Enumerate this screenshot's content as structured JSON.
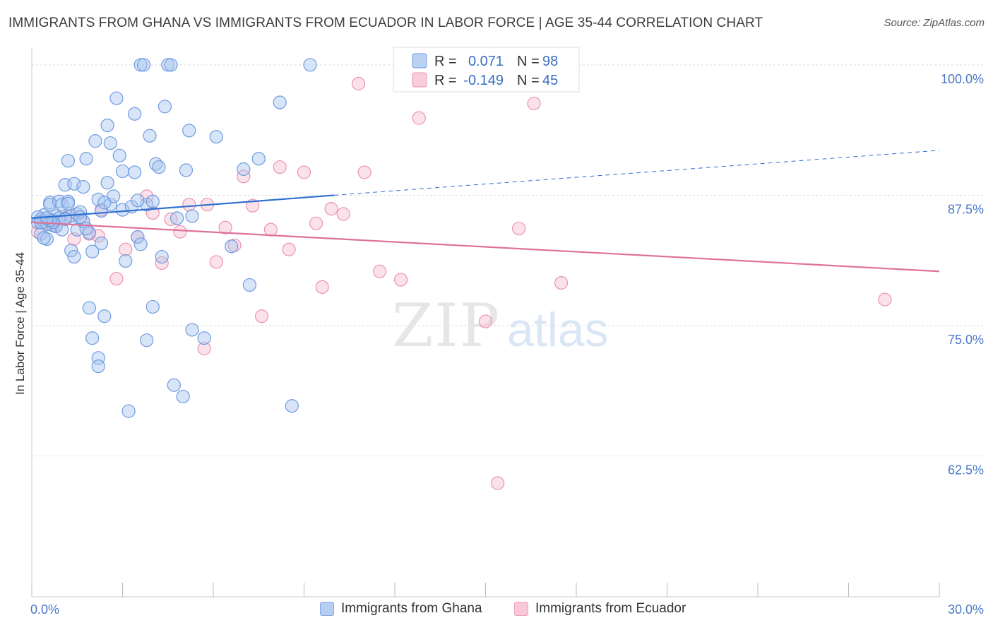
{
  "header": {
    "title": "IMMIGRANTS FROM GHANA VS IMMIGRANTS FROM ECUADOR IN LABOR FORCE | AGE 35-44 CORRELATION CHART",
    "source": "Source: ZipAtlas.com"
  },
  "watermark": {
    "zip": "ZIP",
    "atlas": "atlas"
  },
  "colors": {
    "ghana_fill": "#a9c6f0",
    "ghana_stroke": "#6f9be0",
    "ghana_line": "#2f6fd0",
    "ecuador_fill": "#f7bfd0",
    "ecuador_stroke": "#eb93b0",
    "ecuador_line": "#e0709a",
    "tick_label": "#4a78c8",
    "grid": "#dddddd"
  },
  "legend": {
    "rows": [
      {
        "series": "ghana",
        "r_label": "R =",
        "r_value": "0.071",
        "n_label": "N =",
        "n_value": "98"
      },
      {
        "series": "ecuador",
        "r_label": "R =",
        "r_value": "-0.149",
        "n_label": "N =",
        "n_value": "45"
      }
    ]
  },
  "chart_data": {
    "type": "scatter",
    "title": "IMMIGRANTS FROM GHANA VS IMMIGRANTS FROM ECUADOR IN LABOR FORCE | AGE 35-44 CORRELATION CHART",
    "xlabel": "",
    "ylabel": "In Labor Force | Age 35-44",
    "xlim": [
      0,
      30
    ],
    "ylim": [
      49,
      100.8
    ],
    "x_tick_labels": [
      {
        "value": 0,
        "label": "0.0%"
      },
      {
        "value": 30,
        "label": "30.0%"
      }
    ],
    "x_minor_ticks": [
      0,
      3,
      6,
      9,
      12,
      15,
      18,
      21,
      24,
      27,
      30
    ],
    "y_ticks": [
      {
        "value": 100,
        "label": "100.0%"
      },
      {
        "value": 87.5,
        "label": "87.5%"
      },
      {
        "value": 75,
        "label": "75.0%"
      },
      {
        "value": 62.5,
        "label": "62.5%"
      }
    ],
    "grid": true,
    "legend_position": "top-center",
    "series": [
      {
        "name": "Immigrants from Ghana",
        "key": "ghana",
        "r": 0.071,
        "n": 98,
        "trend": {
          "x0": 0,
          "y0": 85.3,
          "x1": 10.0,
          "y1": 87.5,
          "dash_to_x": 30,
          "dash_to_y": 91.8
        },
        "points": [
          [
            0.2,
            84.9
          ],
          [
            0.3,
            85.2
          ],
          [
            0.3,
            83.8
          ],
          [
            0.4,
            85.6
          ],
          [
            0.5,
            84.7
          ],
          [
            0.5,
            83.3
          ],
          [
            0.6,
            86.8
          ],
          [
            0.6,
            86.6
          ],
          [
            0.7,
            85.1
          ],
          [
            0.7,
            84.6
          ],
          [
            0.8,
            85.5
          ],
          [
            0.8,
            84.5
          ],
          [
            0.9,
            86.9
          ],
          [
            1.0,
            84.2
          ],
          [
            1.0,
            86.6
          ],
          [
            1.1,
            85.3
          ],
          [
            1.1,
            88.5
          ],
          [
            1.2,
            86.9
          ],
          [
            1.2,
            90.8
          ],
          [
            1.3,
            82.2
          ],
          [
            1.3,
            85.5
          ],
          [
            1.4,
            88.6
          ],
          [
            1.4,
            81.6
          ],
          [
            1.5,
            85.7
          ],
          [
            1.5,
            84.2
          ],
          [
            1.6,
            85.9
          ],
          [
            1.7,
            88.3
          ],
          [
            1.7,
            85.0
          ],
          [
            1.8,
            91.0
          ],
          [
            1.9,
            83.9
          ],
          [
            1.9,
            76.7
          ],
          [
            2.0,
            82.1
          ],
          [
            2.0,
            73.8
          ],
          [
            2.1,
            92.7
          ],
          [
            2.2,
            87.1
          ],
          [
            2.2,
            71.9
          ],
          [
            2.2,
            71.1
          ],
          [
            2.3,
            86.0
          ],
          [
            2.3,
            82.9
          ],
          [
            2.4,
            75.9
          ],
          [
            2.5,
            94.2
          ],
          [
            2.5,
            88.7
          ],
          [
            2.6,
            92.5
          ],
          [
            2.6,
            86.6
          ],
          [
            2.7,
            87.4
          ],
          [
            2.8,
            96.8
          ],
          [
            2.9,
            91.3
          ],
          [
            3.0,
            86.1
          ],
          [
            3.0,
            89.8
          ],
          [
            3.1,
            81.2
          ],
          [
            3.2,
            66.8
          ],
          [
            3.3,
            86.4
          ],
          [
            3.4,
            95.3
          ],
          [
            3.4,
            89.7
          ],
          [
            3.5,
            83.5
          ],
          [
            3.6,
            82.8
          ],
          [
            3.6,
            100.0
          ],
          [
            3.7,
            100.0
          ],
          [
            3.8,
            73.6
          ],
          [
            3.8,
            86.6
          ],
          [
            3.9,
            93.2
          ],
          [
            4.0,
            86.9
          ],
          [
            4.0,
            76.8
          ],
          [
            4.1,
            90.5
          ],
          [
            4.2,
            90.2
          ],
          [
            4.3,
            81.6
          ],
          [
            4.4,
            96.0
          ],
          [
            4.5,
            100.0
          ],
          [
            4.6,
            100.0
          ],
          [
            4.7,
            69.3
          ],
          [
            4.8,
            85.3
          ],
          [
            5.0,
            68.2
          ],
          [
            5.1,
            89.9
          ],
          [
            5.2,
            93.7
          ],
          [
            5.3,
            85.5
          ],
          [
            5.3,
            74.6
          ],
          [
            5.7,
            73.8
          ],
          [
            6.1,
            93.1
          ],
          [
            6.6,
            82.6
          ],
          [
            7.0,
            90.0
          ],
          [
            7.2,
            78.9
          ],
          [
            7.5,
            91.0
          ],
          [
            8.2,
            96.4
          ],
          [
            8.6,
            67.3
          ],
          [
            9.2,
            100.0
          ],
          [
            0.2,
            85.4
          ],
          [
            0.4,
            83.4
          ],
          [
            0.9,
            85.3
          ],
          [
            1.6,
            85.4
          ],
          [
            2.4,
            86.8
          ],
          [
            1.2,
            86.7
          ],
          [
            0.7,
            84.9
          ],
          [
            1.8,
            84.3
          ],
          [
            3.5,
            87.0
          ],
          [
            1.1,
            85.2
          ],
          [
            0.6,
            85.1
          ],
          [
            0.3,
            84.9
          ],
          [
            0.5,
            85.3
          ]
        ]
      },
      {
        "name": "Immigrants from Ecuador",
        "key": "ecuador",
        "r": -0.149,
        "n": 45,
        "trend": {
          "x0": 0,
          "y0": 84.9,
          "x1": 30,
          "y1": 80.2
        },
        "points": [
          [
            0.2,
            84.0
          ],
          [
            0.4,
            84.9
          ],
          [
            0.8,
            84.6
          ],
          [
            1.2,
            85.4
          ],
          [
            1.4,
            83.3
          ],
          [
            1.7,
            85.0
          ],
          [
            1.9,
            83.8
          ],
          [
            2.2,
            83.6
          ],
          [
            2.3,
            86.1
          ],
          [
            2.8,
            79.5
          ],
          [
            3.1,
            82.3
          ],
          [
            3.5,
            83.5
          ],
          [
            3.8,
            87.4
          ],
          [
            4.0,
            85.8
          ],
          [
            4.3,
            81.0
          ],
          [
            4.6,
            85.2
          ],
          [
            4.9,
            84.0
          ],
          [
            5.2,
            86.6
          ],
          [
            5.7,
            72.8
          ],
          [
            5.8,
            86.6
          ],
          [
            6.1,
            81.1
          ],
          [
            6.4,
            84.4
          ],
          [
            6.7,
            82.7
          ],
          [
            7.0,
            89.3
          ],
          [
            7.3,
            86.5
          ],
          [
            7.6,
            75.9
          ],
          [
            7.9,
            84.2
          ],
          [
            8.2,
            90.2
          ],
          [
            8.5,
            82.3
          ],
          [
            9.0,
            89.7
          ],
          [
            9.4,
            84.8
          ],
          [
            9.6,
            78.7
          ],
          [
            9.9,
            86.2
          ],
          [
            10.3,
            85.7
          ],
          [
            10.8,
            98.2
          ],
          [
            11.0,
            89.7
          ],
          [
            11.5,
            80.2
          ],
          [
            12.2,
            79.4
          ],
          [
            12.8,
            94.9
          ],
          [
            15.0,
            75.4
          ],
          [
            15.4,
            59.9
          ],
          [
            16.1,
            84.3
          ],
          [
            16.6,
            96.3
          ],
          [
            17.5,
            79.1
          ],
          [
            28.2,
            77.5
          ]
        ]
      }
    ]
  },
  "bottom_legend": {
    "items": [
      {
        "series": "ghana",
        "label": "Immigrants from Ghana"
      },
      {
        "series": "ecuador",
        "label": "Immigrants from Ecuador"
      }
    ]
  }
}
